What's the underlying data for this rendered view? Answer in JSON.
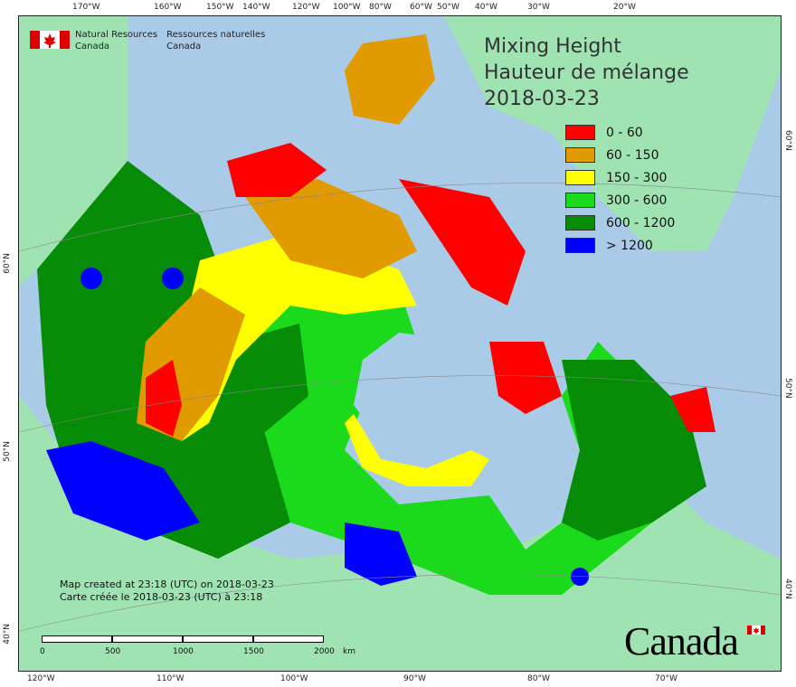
{
  "title": {
    "line1": "Mixing Height",
    "line2": "Hauteur de mélange",
    "line3": "2018-03-23"
  },
  "agency": {
    "en_line1": "Natural Resources",
    "en_line2": "Canada",
    "fr_line1": "Ressources naturelles",
    "fr_line2": "Canada"
  },
  "legend": [
    {
      "label": "0 - 60",
      "color": "#ff0000"
    },
    {
      "label": "60 - 150",
      "color": "#e19b00"
    },
    {
      "label": "150 - 300",
      "color": "#ffff00"
    },
    {
      "label": "300 - 600",
      "color": "#1bd91b"
    },
    {
      "label": "600 - 1200",
      "color": "#078c07"
    },
    {
      "label": "> 1200",
      "color": "#0000ff"
    }
  ],
  "created": {
    "en": "Map created at 23:18 (UTC) on 2018-03-23",
    "fr": "Carte créée le 2018-03-23 (UTC) à 23:18"
  },
  "scale": {
    "labels": [
      "0",
      "500",
      "1000",
      "1500",
      "2000"
    ],
    "unit": "km"
  },
  "wordmark": "Canada",
  "top_ticks": [
    "170°W",
    "160°W",
    "150°W",
    "140°W",
    "120°W",
    "100°W",
    "80°W",
    "60°W",
    "50°W",
    "40°W",
    "30°W",
    "20°W"
  ],
  "bottom_ticks": [
    "120°W",
    "110°W",
    "100°W",
    "90°W",
    "80°W",
    "70°W"
  ],
  "left_ticks": [
    "60°N",
    "50°N",
    "40°N"
  ],
  "right_ticks": [
    "60°N",
    "50°N",
    "40°N"
  ],
  "colors": {
    "water": "#a9cbe8",
    "foreign_land": "#9fe3b3",
    "frame": "#222222"
  }
}
